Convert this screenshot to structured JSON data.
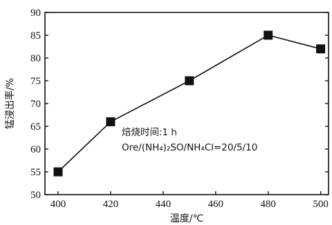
{
  "chart_data": {
    "type": "line",
    "x": [
      400,
      420,
      450,
      480,
      500
    ],
    "series": [
      {
        "values": [
          55,
          66,
          75,
          85,
          82
        ]
      }
    ],
    "xlabel": "温度/℃",
    "ylabel": "锰浸出率/%",
    "xlim": [
      395,
      503
    ],
    "ylim": [
      50,
      90
    ],
    "xticks": [
      400,
      420,
      440,
      460,
      480,
      500
    ],
    "yticks": [
      50,
      55,
      60,
      65,
      70,
      75,
      80,
      85,
      90
    ],
    "annotations": [
      "焙烧时间:1 h",
      "Ore/(NH₄)₂SO/NH₄Cl=20/5/10"
    ],
    "marker": "square",
    "grid": false,
    "line_color": "#111111"
  }
}
